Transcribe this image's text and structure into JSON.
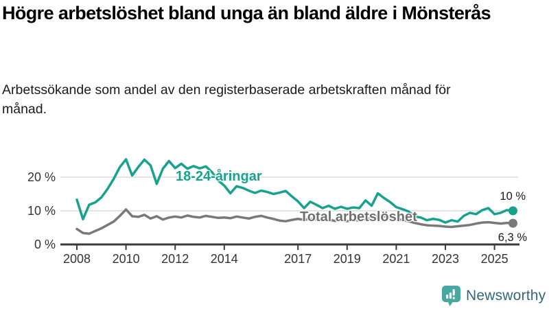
{
  "header": {
    "title": "Högre arbetslöshet bland unga än bland äldre i Mönsterås",
    "subtitle": "Arbetssökande som andel av den registerbaserade arbetskraften månad för månad."
  },
  "chart_data": {
    "type": "line",
    "title": "Högre arbetslöshet bland unga än bland äldre i Mönsterås",
    "xlabel": "",
    "ylabel": "",
    "unit": "%",
    "grid": "horizontal-y",
    "legend_position": "inline-labels",
    "xlim": [
      2008,
      2025.75
    ],
    "ylim": [
      0,
      27
    ],
    "x": [
      2008,
      2008.25,
      2008.5,
      2008.75,
      2009,
      2009.25,
      2009.5,
      2009.75,
      2010,
      2010.25,
      2010.5,
      2010.75,
      2011,
      2011.25,
      2011.5,
      2011.75,
      2012,
      2012.25,
      2012.5,
      2012.75,
      2013,
      2013.25,
      2013.5,
      2013.75,
      2014,
      2014.25,
      2014.5,
      2014.75,
      2015,
      2015.25,
      2015.5,
      2015.75,
      2016,
      2016.25,
      2016.5,
      2016.75,
      2017,
      2017.25,
      2017.5,
      2017.75,
      2018,
      2018.25,
      2018.5,
      2018.75,
      2019,
      2019.25,
      2019.5,
      2019.75,
      2020,
      2020.25,
      2020.5,
      2020.75,
      2021,
      2021.25,
      2021.5,
      2021.75,
      2022,
      2022.25,
      2022.5,
      2022.75,
      2023,
      2023.25,
      2023.5,
      2023.75,
      2024,
      2024.25,
      2024.5,
      2024.75,
      2025,
      2025.25,
      2025.5,
      2025.75
    ],
    "series": [
      {
        "name": "18-24-åringar",
        "color": "#17a28f",
        "end_label": "10 %",
        "end_value": 10.0,
        "values": [
          13.3,
          7.5,
          11.8,
          12.5,
          14.0,
          16.5,
          19.5,
          23.0,
          25.3,
          20.5,
          23.0,
          25.2,
          23.5,
          18.0,
          22.5,
          24.8,
          22.7,
          24.0,
          22.5,
          23.3,
          22.6,
          23.2,
          21.5,
          19.0,
          17.5,
          15.2,
          17.3,
          16.8,
          16.0,
          15.3,
          16.0,
          15.6,
          15.0,
          15.4,
          15.9,
          14.3,
          12.8,
          10.8,
          12.7,
          11.8,
          10.8,
          11.5,
          10.6,
          11.2,
          10.6,
          11.0,
          10.8,
          13.1,
          11.5,
          15.2,
          13.8,
          12.6,
          11.1,
          10.5,
          9.8,
          8.3,
          8.0,
          7.2,
          7.6,
          7.3,
          6.5,
          7.2,
          6.8,
          8.5,
          9.4,
          9.0,
          10.2,
          10.8,
          9.0,
          9.4,
          10.2,
          10.0
        ]
      },
      {
        "name": "Total arbetslöshet",
        "color": "#797979",
        "end_label": "6,3 %",
        "end_value": 6.3,
        "values": [
          4.6,
          3.4,
          3.2,
          4.0,
          4.8,
          5.8,
          6.8,
          8.5,
          10.4,
          8.4,
          8.2,
          8.8,
          7.7,
          8.4,
          7.4,
          8.0,
          8.3,
          8.0,
          8.6,
          8.2,
          8.0,
          8.5,
          8.2,
          7.9,
          8.0,
          7.8,
          8.3,
          8.0,
          7.7,
          8.2,
          8.5,
          8.0,
          7.6,
          7.1,
          6.9,
          7.3,
          7.6,
          7.3,
          7.6,
          7.4,
          7.1,
          7.4,
          7.0,
          7.2,
          6.9,
          7.3,
          7.1,
          7.5,
          7.8,
          8.6,
          8.4,
          8.0,
          7.7,
          7.3,
          6.9,
          6.4,
          6.0,
          5.7,
          5.6,
          5.5,
          5.3,
          5.2,
          5.4,
          5.6,
          5.8,
          6.2,
          6.5,
          6.6,
          6.4,
          6.2,
          6.4,
          6.3
        ]
      }
    ],
    "xticks": {
      "values": [
        2008,
        2010,
        2012,
        2014,
        2017,
        2019,
        2021,
        2023,
        2025
      ],
      "labels": [
        "2008",
        "2010",
        "2012",
        "2014",
        "2017",
        "2019",
        "2021",
        "2023",
        "2025"
      ]
    },
    "yticks": {
      "values": [
        0,
        10,
        20
      ],
      "labels": [
        "0 %",
        "10 %",
        "20 %"
      ]
    }
  },
  "footer": {
    "brand": "Newsworthy",
    "icon": "newsworthy-chart-bubble-icon",
    "icon_color": "#46a8a0",
    "brand_color": "#33677b"
  }
}
